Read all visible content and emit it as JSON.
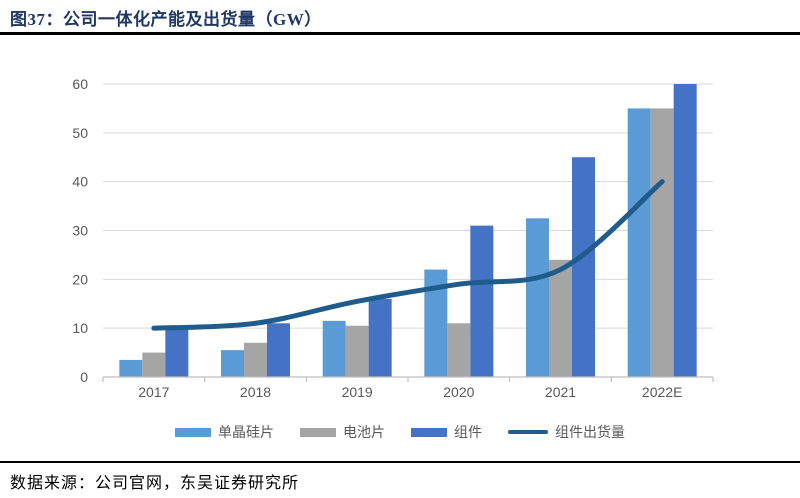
{
  "header": {
    "title": "图37：公司一体化产能及出货量（GW）"
  },
  "footer": {
    "source": "数据来源：公司官网，东吴证券研究所"
  },
  "colors": {
    "title": "#1F3864",
    "rule": "#000000",
    "gridline": "#D9D9D9",
    "axis_line": "#BFBFBF",
    "axis_text": "#595959",
    "wafer_bar": "#5B9BD5",
    "cell_bar": "#A5A5A5",
    "module_bar": "#4472C4",
    "shipment_line": "#1F5C8B"
  },
  "chart_data": {
    "type": "bar",
    "subtype": "grouped-bars-with-line",
    "title": "公司一体化产能及出货量（GW）",
    "categories": [
      "2017",
      "2018",
      "2019",
      "2020",
      "2021",
      "2022E"
    ],
    "series": [
      {
        "name": "单晶硅片",
        "type": "bar",
        "color": "#5B9BD5",
        "values": [
          3.5,
          5.5,
          11.5,
          22,
          32.5,
          55
        ]
      },
      {
        "name": "电池片",
        "type": "bar",
        "color": "#A5A5A5",
        "values": [
          5,
          7,
          10.5,
          11,
          24,
          55
        ]
      },
      {
        "name": "组件",
        "type": "bar",
        "color": "#4472C4",
        "values": [
          10.5,
          11,
          16,
          31,
          45,
          60
        ]
      },
      {
        "name": "组件出货量",
        "type": "line",
        "color": "#1F5C8B",
        "values": [
          10,
          11,
          15.5,
          19,
          22,
          40
        ]
      }
    ],
    "xlabel": "",
    "ylabel": "",
    "ylim": [
      0,
      60
    ],
    "yticks": [
      0,
      10,
      20,
      30,
      40,
      50,
      60
    ],
    "grid": true,
    "legend_position": "bottom"
  }
}
